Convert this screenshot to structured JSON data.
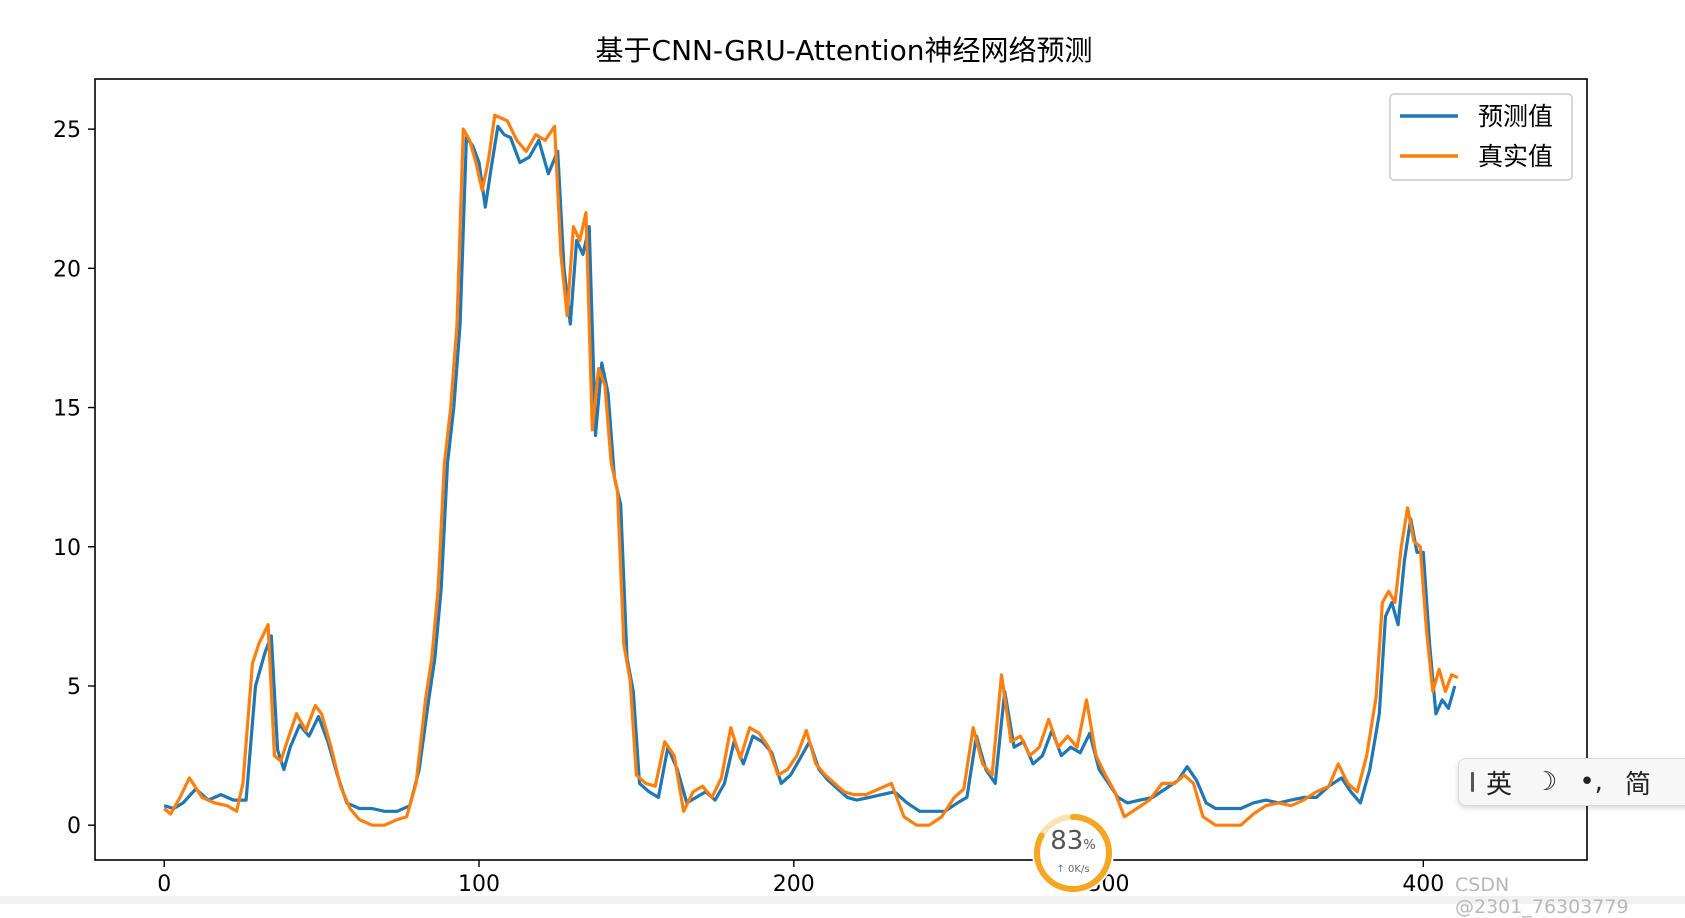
{
  "chart_data": {
    "type": "line",
    "title": "基于CNN-GRU-Attention神经网络预测",
    "xlabel": "",
    "ylabel": "",
    "xlim": [
      -22,
      452
    ],
    "ylim": [
      -1.25,
      26.8
    ],
    "xticks": [
      0,
      100,
      200,
      300,
      400
    ],
    "yticks": [
      0,
      5,
      10,
      15,
      20,
      25
    ],
    "grid": false,
    "legend_position": "top-right",
    "series": [
      {
        "name": "预测值",
        "color": "#1f77b4",
        "points": [
          [
            0,
            0.7
          ],
          [
            3,
            0.6
          ],
          [
            6,
            0.8
          ],
          [
            10,
            1.3
          ],
          [
            14,
            0.9
          ],
          [
            18,
            1.1
          ],
          [
            22,
            0.9
          ],
          [
            26,
            0.9
          ],
          [
            29,
            5.0
          ],
          [
            32,
            6.2
          ],
          [
            34,
            6.8
          ],
          [
            36,
            2.7
          ],
          [
            38,
            2.0
          ],
          [
            40,
            2.8
          ],
          [
            43,
            3.6
          ],
          [
            46,
            3.2
          ],
          [
            49,
            3.9
          ],
          [
            52,
            3.0
          ],
          [
            55,
            1.8
          ],
          [
            58,
            0.8
          ],
          [
            62,
            0.6
          ],
          [
            66,
            0.6
          ],
          [
            70,
            0.5
          ],
          [
            74,
            0.5
          ],
          [
            78,
            0.7
          ],
          [
            81,
            2.0
          ],
          [
            84,
            4.5
          ],
          [
            86,
            6.0
          ],
          [
            88,
            8.5
          ],
          [
            90,
            13.0
          ],
          [
            92,
            15.0
          ],
          [
            94,
            18.0
          ],
          [
            96,
            24.7
          ],
          [
            98,
            24.4
          ],
          [
            100,
            23.8
          ],
          [
            102,
            22.2
          ],
          [
            104,
            23.7
          ],
          [
            106,
            25.1
          ],
          [
            108,
            24.8
          ],
          [
            110,
            24.7
          ],
          [
            113,
            23.8
          ],
          [
            116,
            24.0
          ],
          [
            119,
            24.6
          ],
          [
            122,
            23.4
          ],
          [
            125,
            24.2
          ],
          [
            127,
            20.0
          ],
          [
            129,
            18.0
          ],
          [
            131,
            21.0
          ],
          [
            133,
            20.5
          ],
          [
            135,
            21.5
          ],
          [
            137,
            14.0
          ],
          [
            139,
            16.6
          ],
          [
            141,
            15.5
          ],
          [
            143,
            12.5
          ],
          [
            145,
            11.5
          ],
          [
            147,
            6.0
          ],
          [
            149,
            4.8
          ],
          [
            151,
            1.5
          ],
          [
            154,
            1.2
          ],
          [
            157,
            1.0
          ],
          [
            160,
            2.8
          ],
          [
            163,
            2.0
          ],
          [
            166,
            0.8
          ],
          [
            169,
            1.0
          ],
          [
            172,
            1.2
          ],
          [
            175,
            0.9
          ],
          [
            178,
            1.5
          ],
          [
            181,
            3.0
          ],
          [
            184,
            2.2
          ],
          [
            187,
            3.2
          ],
          [
            190,
            3.0
          ],
          [
            193,
            2.6
          ],
          [
            196,
            1.5
          ],
          [
            199,
            1.8
          ],
          [
            202,
            2.4
          ],
          [
            205,
            3.0
          ],
          [
            208,
            2.0
          ],
          [
            211,
            1.6
          ],
          [
            214,
            1.3
          ],
          [
            217,
            1.0
          ],
          [
            220,
            0.9
          ],
          [
            224,
            1.0
          ],
          [
            228,
            1.1
          ],
          [
            232,
            1.2
          ],
          [
            236,
            0.8
          ],
          [
            240,
            0.5
          ],
          [
            244,
            0.5
          ],
          [
            248,
            0.5
          ],
          [
            252,
            0.8
          ],
          [
            255,
            1.0
          ],
          [
            258,
            3.2
          ],
          [
            261,
            2.0
          ],
          [
            264,
            1.5
          ],
          [
            267,
            4.8
          ],
          [
            270,
            2.8
          ],
          [
            273,
            3.0
          ],
          [
            276,
            2.2
          ],
          [
            279,
            2.5
          ],
          [
            282,
            3.4
          ],
          [
            285,
            2.5
          ],
          [
            288,
            2.8
          ],
          [
            291,
            2.6
          ],
          [
            294,
            3.3
          ],
          [
            297,
            2.0
          ],
          [
            300,
            1.5
          ],
          [
            303,
            1.0
          ],
          [
            306,
            0.8
          ],
          [
            310,
            0.9
          ],
          [
            314,
            1.0
          ],
          [
            318,
            1.3
          ],
          [
            322,
            1.6
          ],
          [
            325,
            2.1
          ],
          [
            328,
            1.6
          ],
          [
            331,
            0.8
          ],
          [
            334,
            0.6
          ],
          [
            338,
            0.6
          ],
          [
            342,
            0.6
          ],
          [
            346,
            0.8
          ],
          [
            350,
            0.9
          ],
          [
            354,
            0.8
          ],
          [
            358,
            0.9
          ],
          [
            362,
            1.0
          ],
          [
            366,
            1.0
          ],
          [
            370,
            1.4
          ],
          [
            374,
            1.7
          ],
          [
            377,
            1.2
          ],
          [
            380,
            0.8
          ],
          [
            383,
            2.0
          ],
          [
            386,
            4.0
          ],
          [
            388,
            7.5
          ],
          [
            390,
            8.0
          ],
          [
            392,
            7.2
          ],
          [
            394,
            9.5
          ],
          [
            396,
            11.0
          ],
          [
            398,
            9.8
          ],
          [
            400,
            9.8
          ],
          [
            402,
            6.5
          ],
          [
            404,
            4.0
          ],
          [
            406,
            4.5
          ],
          [
            408,
            4.2
          ],
          [
            410,
            5.0
          ]
        ]
      },
      {
        "name": "真实值",
        "color": "#ff7f0e",
        "points": [
          [
            0,
            0.6
          ],
          [
            2,
            0.4
          ],
          [
            5,
            1.0
          ],
          [
            8,
            1.7
          ],
          [
            12,
            1.0
          ],
          [
            16,
            0.8
          ],
          [
            20,
            0.7
          ],
          [
            23,
            0.5
          ],
          [
            25,
            1.5
          ],
          [
            28,
            5.8
          ],
          [
            30,
            6.5
          ],
          [
            33,
            7.2
          ],
          [
            35,
            2.5
          ],
          [
            37,
            2.3
          ],
          [
            39,
            3.0
          ],
          [
            42,
            4.0
          ],
          [
            45,
            3.4
          ],
          [
            48,
            4.3
          ],
          [
            50,
            4.0
          ],
          [
            53,
            2.8
          ],
          [
            56,
            1.4
          ],
          [
            59,
            0.6
          ],
          [
            62,
            0.2
          ],
          [
            66,
            0.0
          ],
          [
            70,
            0.0
          ],
          [
            74,
            0.2
          ],
          [
            77,
            0.3
          ],
          [
            80,
            1.5
          ],
          [
            83,
            4.5
          ],
          [
            85,
            6.0
          ],
          [
            87,
            8.5
          ],
          [
            89,
            13.0
          ],
          [
            91,
            15.0
          ],
          [
            93,
            18.0
          ],
          [
            95,
            25.0
          ],
          [
            97,
            24.6
          ],
          [
            99,
            23.8
          ],
          [
            101,
            22.8
          ],
          [
            103,
            23.9
          ],
          [
            105,
            25.5
          ],
          [
            107,
            25.4
          ],
          [
            109,
            25.3
          ],
          [
            112,
            24.6
          ],
          [
            115,
            24.2
          ],
          [
            118,
            24.8
          ],
          [
            121,
            24.6
          ],
          [
            124,
            25.1
          ],
          [
            126,
            20.5
          ],
          [
            128,
            18.3
          ],
          [
            130,
            21.5
          ],
          [
            132,
            21.0
          ],
          [
            134,
            22.0
          ],
          [
            136,
            14.2
          ],
          [
            138,
            16.4
          ],
          [
            140,
            15.8
          ],
          [
            142,
            13.0
          ],
          [
            144,
            12.0
          ],
          [
            146,
            6.5
          ],
          [
            148,
            5.2
          ],
          [
            150,
            1.8
          ],
          [
            153,
            1.5
          ],
          [
            156,
            1.4
          ],
          [
            159,
            3.0
          ],
          [
            162,
            2.5
          ],
          [
            165,
            0.5
          ],
          [
            168,
            1.2
          ],
          [
            171,
            1.4
          ],
          [
            174,
            1.0
          ],
          [
            177,
            1.7
          ],
          [
            180,
            3.5
          ],
          [
            183,
            2.4
          ],
          [
            186,
            3.5
          ],
          [
            189,
            3.3
          ],
          [
            192,
            2.8
          ],
          [
            195,
            1.8
          ],
          [
            198,
            2.0
          ],
          [
            201,
            2.5
          ],
          [
            204,
            3.4
          ],
          [
            207,
            2.2
          ],
          [
            210,
            1.8
          ],
          [
            213,
            1.5
          ],
          [
            216,
            1.2
          ],
          [
            219,
            1.1
          ],
          [
            223,
            1.1
          ],
          [
            227,
            1.3
          ],
          [
            231,
            1.5
          ],
          [
            235,
            0.3
          ],
          [
            239,
            0.0
          ],
          [
            243,
            0.0
          ],
          [
            247,
            0.3
          ],
          [
            251,
            1.0
          ],
          [
            254,
            1.3
          ],
          [
            257,
            3.5
          ],
          [
            260,
            2.2
          ],
          [
            263,
            1.8
          ],
          [
            266,
            5.4
          ],
          [
            269,
            3.0
          ],
          [
            272,
            3.2
          ],
          [
            275,
            2.5
          ],
          [
            278,
            2.8
          ],
          [
            281,
            3.8
          ],
          [
            284,
            2.8
          ],
          [
            287,
            3.2
          ],
          [
            290,
            2.8
          ],
          [
            293,
            4.5
          ],
          [
            296,
            2.5
          ],
          [
            299,
            1.8
          ],
          [
            302,
            1.2
          ],
          [
            305,
            0.3
          ],
          [
            309,
            0.6
          ],
          [
            313,
            0.9
          ],
          [
            317,
            1.5
          ],
          [
            321,
            1.5
          ],
          [
            324,
            1.8
          ],
          [
            327,
            1.5
          ],
          [
            330,
            0.3
          ],
          [
            334,
            0.0
          ],
          [
            338,
            0.0
          ],
          [
            342,
            0.0
          ],
          [
            346,
            0.4
          ],
          [
            350,
            0.7
          ],
          [
            354,
            0.8
          ],
          [
            358,
            0.7
          ],
          [
            362,
            0.9
          ],
          [
            366,
            1.2
          ],
          [
            370,
            1.4
          ],
          [
            373,
            2.2
          ],
          [
            376,
            1.5
          ],
          [
            379,
            1.2
          ],
          [
            382,
            2.5
          ],
          [
            385,
            4.6
          ],
          [
            387,
            8.0
          ],
          [
            389,
            8.4
          ],
          [
            391,
            8.0
          ],
          [
            393,
            10.0
          ],
          [
            395,
            11.4
          ],
          [
            397,
            10.2
          ],
          [
            399,
            10.0
          ],
          [
            401,
            7.0
          ],
          [
            403,
            4.8
          ],
          [
            405,
            5.6
          ],
          [
            407,
            4.8
          ],
          [
            409,
            5.4
          ],
          [
            411,
            5.3
          ]
        ]
      }
    ]
  },
  "overlays": {
    "ime_bar": {
      "items": [
        "英",
        "☽",
        "•,",
        "简"
      ]
    },
    "network_monitor": {
      "percent": "83",
      "percent_unit": "%",
      "rate": "0K/s",
      "percent_value": 0.83,
      "ring_color": "#f5a623"
    },
    "watermark": "CSDN @2301_76303779"
  }
}
